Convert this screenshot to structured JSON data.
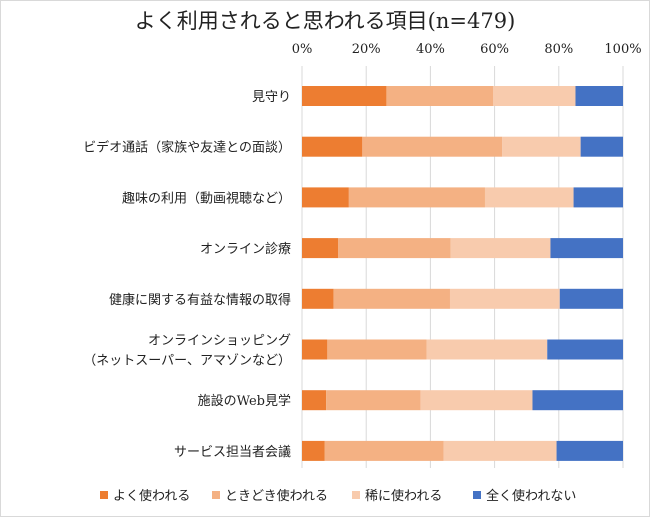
{
  "chart_data": {
    "type": "bar",
    "stacked": true,
    "orientation": "horizontal",
    "title": "よく利用されると思われる項目(n=479)",
    "x_ticks": [
      "0%",
      "20%",
      "40%",
      "60%",
      "80%",
      "100%"
    ],
    "xlim": [
      0,
      100
    ],
    "x_axis_position": "top",
    "grid": true,
    "legend_position": "bottom",
    "categories": [
      [
        "見守り"
      ],
      [
        "ビデオ通話（家族や友達との面談）"
      ],
      [
        "趣味の利用（動画視聴など）"
      ],
      [
        "オンライン診療"
      ],
      [
        "健康に関する有益な情報の取得"
      ],
      [
        "オンラインショッピング",
        "（ネットスーパー、アマゾンなど）"
      ],
      [
        "施設のWeb見学"
      ],
      [
        "サービス担当者会議"
      ]
    ],
    "series": [
      {
        "name": "よく使われる",
        "color": "#ED7D31",
        "values": [
          26.3,
          18.8,
          14.6,
          11.3,
          9.8,
          7.9,
          7.5,
          7.1
        ]
      },
      {
        "name": "ときどき使われる",
        "color": "#F4B183",
        "values": [
          33.2,
          43.6,
          42.4,
          35.0,
          36.3,
          30.9,
          29.4,
          37.0
        ]
      },
      {
        "name": "稀に使われる",
        "color": "#F8CBAD",
        "values": [
          25.7,
          24.4,
          27.6,
          31.1,
          34.2,
          37.6,
          34.9,
          35.2
        ]
      },
      {
        "name": "全く使われない",
        "color": "#4472C4",
        "values": [
          14.8,
          13.2,
          15.4,
          22.6,
          19.7,
          23.6,
          28.2,
          20.7
        ]
      }
    ]
  }
}
